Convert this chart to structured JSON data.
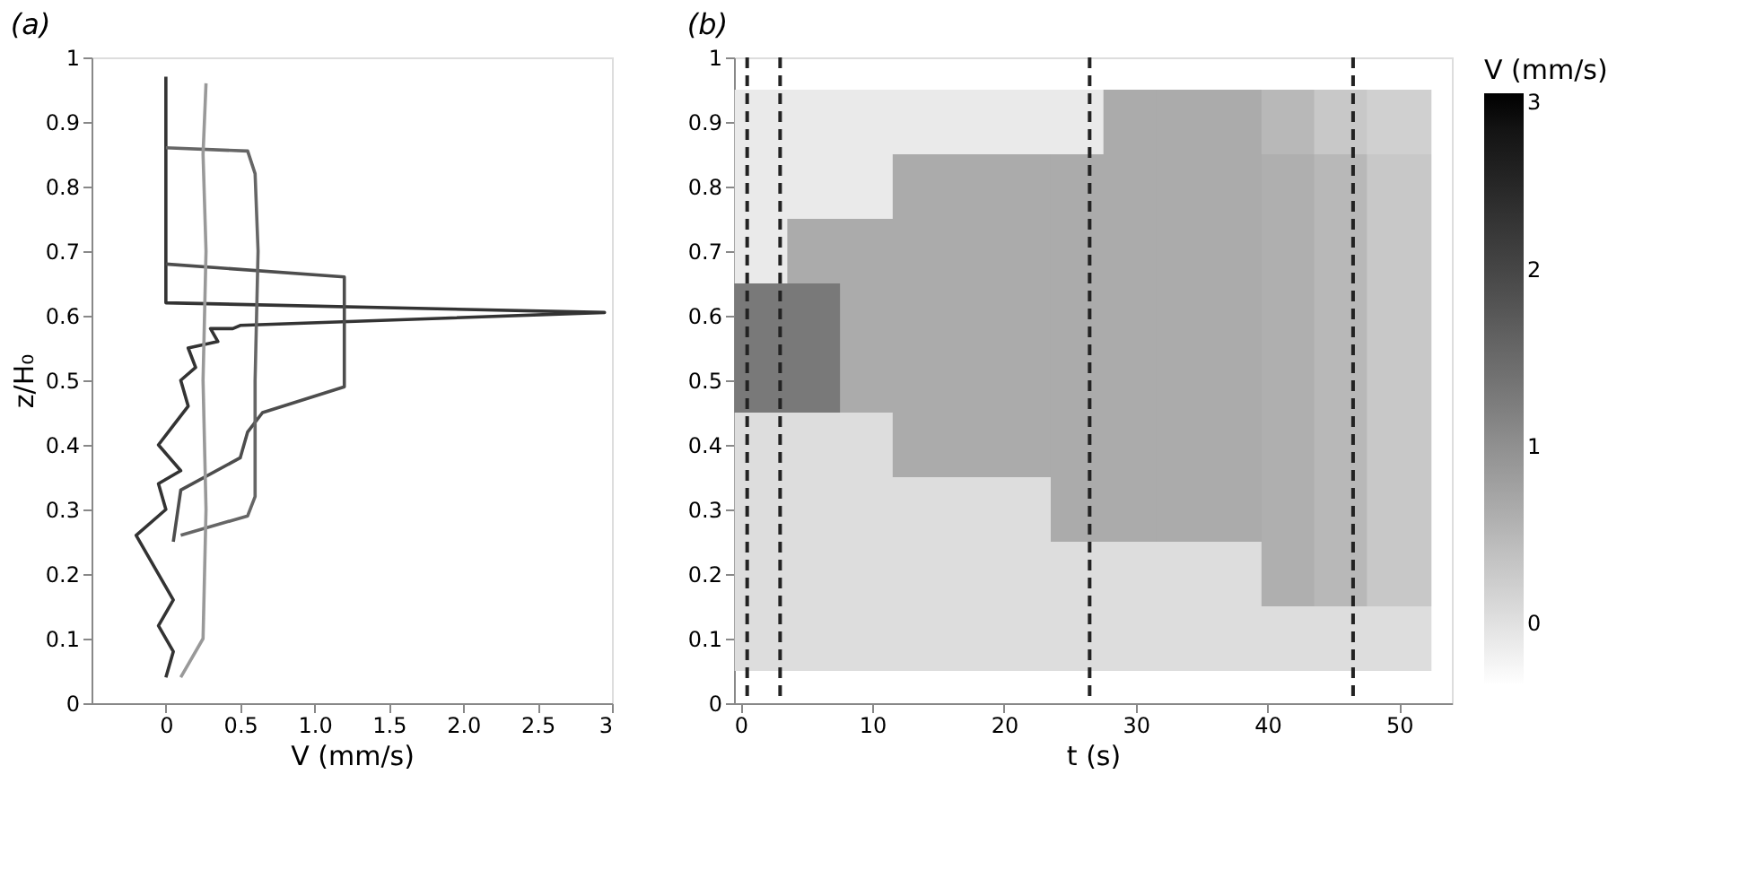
{
  "chart_data": [
    {
      "type": "line",
      "title": "(a)",
      "xlabel": "V  (mm/s)",
      "ylabel": "z/H₀",
      "xlim": [
        -0.5,
        3
      ],
      "xticks": [
        0,
        0.5,
        {
          "value": 1,
          "label": "1.0"
        },
        1.5,
        {
          "value": 2,
          "label": "2.0"
        },
        2.5,
        3
      ],
      "ylim": [
        0,
        1
      ],
      "yticks": [
        0,
        0.1,
        0.2,
        0.3,
        0.4,
        0.5,
        0.6,
        0.7,
        0.8,
        0.9,
        1
      ],
      "grid": false,
      "legend": false,
      "line_style": "solid",
      "marker": "none",
      "series": [
        {
          "color": "#333333",
          "x": [
            0.0,
            0.05,
            -0.05,
            0.05,
            -0.2,
            0.0,
            -0.05,
            0.1,
            -0.05,
            0.05,
            0.15,
            0.1,
            0.2,
            0.15,
            0.35,
            0.3,
            0.45,
            0.5,
            2.95,
            0,
            0
          ],
          "values": [
            0.04,
            0.08,
            0.12,
            0.16,
            0.26,
            0.3,
            0.34,
            0.36,
            0.4,
            0.43,
            0.46,
            0.5,
            0.52,
            0.55,
            0.56,
            0.58,
            0.58,
            0.585,
            0.605,
            0.62,
            0.97
          ]
        },
        {
          "color": "#4d4d4d",
          "x": [
            0.05,
            0.1,
            0.5,
            0.55,
            0.65,
            1.2,
            1.2,
            1.2,
            0
          ],
          "values": [
            0.25,
            0.33,
            0.38,
            0.42,
            0.45,
            0.49,
            0.6,
            0.66,
            0.68
          ]
        },
        {
          "color": "#666666",
          "x": [
            0.1,
            0.55,
            0.6,
            0.6,
            0.62,
            0.6,
            0.55,
            0
          ],
          "values": [
            0.26,
            0.29,
            0.32,
            0.5,
            0.7,
            0.82,
            0.855,
            0.86
          ]
        },
        {
          "color": "#999999",
          "x": [
            0.1,
            0.25,
            0.27,
            0.25,
            0.27,
            0.25,
            0.27
          ],
          "values": [
            0.04,
            0.1,
            0.3,
            0.5,
            0.7,
            0.85,
            0.96
          ]
        }
      ]
    },
    {
      "type": "scatter",
      "title": "(b)",
      "xlabel": "t  (s)",
      "clabel": "V  (mm/s)",
      "xlim": [
        -0.5,
        54
      ],
      "xticks": [
        0,
        10,
        20,
        30,
        40,
        50
      ],
      "ylim": [
        0,
        1
      ],
      "yticks": [
        0,
        0.1,
        0.2,
        0.3,
        0.4,
        0.5,
        0.6,
        0.7,
        0.8,
        0.9,
        1
      ],
      "clim": [
        -0.35,
        3
      ],
      "cticks": [
        0,
        1,
        2,
        3
      ],
      "grid": false,
      "marker": "square",
      "x": [
        2,
        2,
        2,
        2,
        2,
        2,
        2,
        2,
        2,
        6,
        6,
        6,
        6,
        6,
        6,
        6,
        6,
        6,
        10,
        10,
        10,
        10,
        10,
        10,
        10,
        10,
        10,
        14,
        14,
        14,
        14,
        14,
        14,
        14,
        14,
        14,
        18,
        18,
        18,
        18,
        18,
        18,
        18,
        18,
        18,
        22,
        22,
        22,
        22,
        22,
        22,
        22,
        22,
        22,
        26,
        26,
        26,
        26,
        26,
        26,
        26,
        26,
        26,
        30,
        30,
        30,
        30,
        30,
        30,
        30,
        30,
        30,
        34,
        34,
        34,
        34,
        34,
        34,
        34,
        34,
        34,
        38,
        38,
        38,
        38,
        38,
        38,
        38,
        38,
        38,
        42,
        42,
        42,
        42,
        42,
        42,
        42,
        42,
        42,
        46,
        46,
        46,
        46,
        46,
        46,
        46,
        46,
        46,
        50,
        50,
        50,
        50,
        50,
        50,
        50,
        50,
        50
      ],
      "values": [
        0.1,
        0.2,
        0.3,
        0.4,
        0.5,
        0.6,
        0.7,
        0.8,
        0.9,
        0.1,
        0.2,
        0.3,
        0.4,
        0.5,
        0.6,
        0.7,
        0.8,
        0.9,
        0.1,
        0.2,
        0.3,
        0.4,
        0.5,
        0.6,
        0.7,
        0.8,
        0.9,
        0.1,
        0.2,
        0.3,
        0.4,
        0.5,
        0.6,
        0.7,
        0.8,
        0.9,
        0.1,
        0.2,
        0.3,
        0.4,
        0.5,
        0.6,
        0.7,
        0.8,
        0.9,
        0.1,
        0.2,
        0.3,
        0.4,
        0.5,
        0.6,
        0.7,
        0.8,
        0.9,
        0.1,
        0.2,
        0.3,
        0.4,
        0.5,
        0.6,
        0.7,
        0.8,
        0.9,
        0.1,
        0.2,
        0.3,
        0.4,
        0.5,
        0.6,
        0.7,
        0.8,
        0.9,
        0.1,
        0.2,
        0.3,
        0.4,
        0.5,
        0.6,
        0.7,
        0.8,
        0.9,
        0.1,
        0.2,
        0.3,
        0.4,
        0.5,
        0.6,
        0.7,
        0.8,
        0.9,
        0.1,
        0.2,
        0.3,
        0.4,
        0.5,
        0.6,
        0.7,
        0.8,
        0.9,
        0.1,
        0.2,
        0.3,
        0.4,
        0.5,
        0.6,
        0.7,
        0.8,
        0.9,
        0.1,
        0.2,
        0.3,
        0.4,
        0.5,
        0.6,
        0.7,
        0.8,
        0.9
      ],
      "cvalues": [
        0.05,
        0.05,
        0.05,
        0.05,
        1.3,
        1.3,
        -0.1,
        -0.1,
        -0.1,
        0.05,
        0.05,
        0.05,
        0.05,
        1.3,
        1.3,
        0.65,
        -0.1,
        -0.1,
        0.05,
        0.05,
        0.05,
        0.05,
        0.65,
        0.65,
        0.65,
        -0.1,
        -0.1,
        0.05,
        0.05,
        0.05,
        0.65,
        0.65,
        0.65,
        0.65,
        0.65,
        -0.1,
        0.05,
        0.05,
        0.05,
        0.65,
        0.65,
        0.65,
        0.65,
        0.65,
        -0.1,
        0.05,
        0.05,
        0.05,
        0.65,
        0.65,
        0.65,
        0.65,
        0.65,
        -0.1,
        0.05,
        0.05,
        0.65,
        0.65,
        0.65,
        0.65,
        0.65,
        0.65,
        -0.1,
        0.05,
        0.05,
        0.65,
        0.65,
        0.65,
        0.65,
        0.65,
        0.65,
        0.65,
        0.05,
        0.05,
        0.65,
        0.65,
        0.65,
        0.65,
        0.65,
        0.65,
        0.65,
        0.05,
        0.05,
        0.65,
        0.65,
        0.65,
        0.65,
        0.65,
        0.65,
        0.65,
        0.05,
        0.6,
        0.6,
        0.6,
        0.6,
        0.6,
        0.6,
        0.6,
        0.5,
        0.05,
        0.5,
        0.5,
        0.5,
        0.5,
        0.5,
        0.5,
        0.5,
        0.3,
        0.05,
        0.3,
        0.3,
        0.3,
        0.3,
        0.3,
        0.3,
        0.3,
        0.2
      ],
      "ref_lines": [
        {
          "axis": "x",
          "value": 0.5,
          "line_style": "dashed"
        },
        {
          "axis": "x",
          "value": 3,
          "line_style": "dashed"
        },
        {
          "axis": "x",
          "value": 26.5,
          "line_style": "dashed"
        },
        {
          "axis": "x",
          "value": 46.5,
          "line_style": "dashed"
        }
      ]
    }
  ]
}
